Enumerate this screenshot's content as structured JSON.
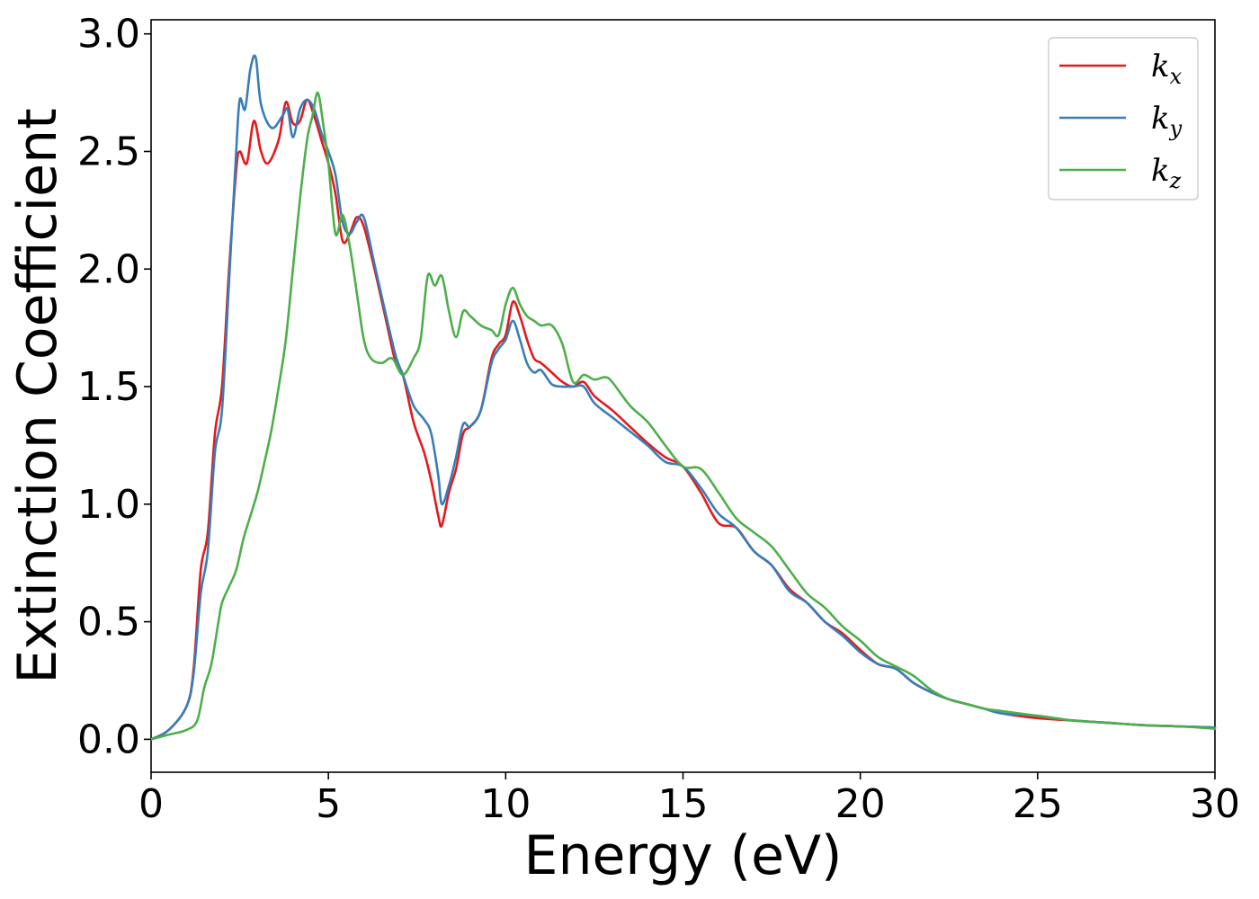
{
  "chart_data": {
    "type": "line",
    "title": "",
    "xlabel": "Energy (eV)",
    "ylabel": "Extinction Coefficient",
    "xlim": [
      0,
      30
    ],
    "ylim": [
      -0.14,
      3.06
    ],
    "xticks": [
      0,
      5,
      10,
      15,
      20,
      25,
      30
    ],
    "yticks": [
      0.0,
      0.5,
      1.0,
      1.5,
      2.0,
      2.5,
      3.0
    ],
    "xtick_labels": [
      "0",
      "5",
      "10",
      "15",
      "20",
      "25",
      "30"
    ],
    "ytick_labels": [
      "0.0",
      "0.5",
      "1.0",
      "1.5",
      "2.0",
      "2.5",
      "3.0"
    ],
    "grid": false,
    "legend_position": "top-right",
    "series": [
      {
        "name": "k",
        "subscript": "x",
        "color": "#e41a1c",
        "x": [
          0,
          0.5,
          1.0,
          1.2,
          1.4,
          1.6,
          1.8,
          2.0,
          2.2,
          2.4,
          2.5,
          2.7,
          2.9,
          3.1,
          3.3,
          3.6,
          3.8,
          4.0,
          4.2,
          4.4,
          4.6,
          4.8,
          5.0,
          5.2,
          5.4,
          5.6,
          5.8,
          6.0,
          6.3,
          6.6,
          6.9,
          7.1,
          7.4,
          7.7,
          7.9,
          8.1,
          8.2,
          8.4,
          8.6,
          8.8,
          9.0,
          9.3,
          9.6,
          9.8,
          10.0,
          10.2,
          10.4,
          10.6,
          10.8,
          11.0,
          11.3,
          11.6,
          11.9,
          12.2,
          12.5,
          13.0,
          13.5,
          14.0,
          14.5,
          15.0,
          15.5,
          16.0,
          16.5,
          17.0,
          17.5,
          18.0,
          18.5,
          19.0,
          19.5,
          20.0,
          20.5,
          21.0,
          21.5,
          22.0,
          22.5,
          23.0,
          23.5,
          24.0,
          25.0,
          26.0,
          27.0,
          28.0,
          29.0,
          30.0
        ],
        "values": [
          0.0,
          0.04,
          0.14,
          0.3,
          0.72,
          0.88,
          1.3,
          1.5,
          2.0,
          2.42,
          2.5,
          2.45,
          2.63,
          2.5,
          2.45,
          2.55,
          2.71,
          2.62,
          2.63,
          2.72,
          2.65,
          2.55,
          2.45,
          2.32,
          2.12,
          2.15,
          2.22,
          2.18,
          2.0,
          1.8,
          1.6,
          1.55,
          1.35,
          1.22,
          1.1,
          0.95,
          0.91,
          1.05,
          1.15,
          1.3,
          1.33,
          1.4,
          1.62,
          1.68,
          1.72,
          1.86,
          1.8,
          1.7,
          1.62,
          1.6,
          1.56,
          1.52,
          1.5,
          1.52,
          1.46,
          1.4,
          1.33,
          1.26,
          1.2,
          1.16,
          1.05,
          0.92,
          0.9,
          0.8,
          0.74,
          0.64,
          0.58,
          0.5,
          0.45,
          0.38,
          0.32,
          0.3,
          0.24,
          0.2,
          0.17,
          0.15,
          0.13,
          0.11,
          0.09,
          0.08,
          0.07,
          0.06,
          0.055,
          0.05
        ]
      },
      {
        "name": "k",
        "subscript": "y",
        "color": "#377eb8",
        "x": [
          0,
          0.5,
          1.0,
          1.2,
          1.4,
          1.6,
          1.8,
          2.0,
          2.2,
          2.4,
          2.5,
          2.65,
          2.8,
          2.95,
          3.1,
          3.4,
          3.7,
          3.85,
          4.0,
          4.2,
          4.4,
          4.6,
          4.8,
          5.0,
          5.2,
          5.4,
          5.6,
          5.8,
          6.0,
          6.3,
          6.6,
          6.9,
          7.1,
          7.4,
          7.7,
          7.9,
          8.1,
          8.2,
          8.4,
          8.6,
          8.8,
          9.0,
          9.3,
          9.6,
          9.8,
          10.0,
          10.2,
          10.4,
          10.6,
          10.8,
          11.0,
          11.3,
          11.6,
          11.9,
          12.2,
          12.5,
          13.0,
          13.5,
          14.0,
          14.5,
          15.0,
          15.5,
          16.0,
          16.5,
          17.0,
          17.5,
          18.0,
          18.5,
          19.0,
          19.5,
          20.0,
          20.5,
          21.0,
          21.5,
          22.0,
          22.5,
          23.0,
          23.5,
          24.0,
          25.0,
          26.0,
          27.0,
          28.0,
          29.0,
          30.0
        ],
        "values": [
          0.0,
          0.04,
          0.14,
          0.28,
          0.62,
          0.8,
          1.22,
          1.4,
          1.95,
          2.5,
          2.72,
          2.68,
          2.85,
          2.9,
          2.7,
          2.6,
          2.65,
          2.68,
          2.56,
          2.68,
          2.72,
          2.68,
          2.58,
          2.5,
          2.4,
          2.2,
          2.15,
          2.2,
          2.22,
          2.02,
          1.82,
          1.63,
          1.55,
          1.42,
          1.36,
          1.3,
          1.12,
          1.0,
          1.08,
          1.2,
          1.34,
          1.33,
          1.4,
          1.6,
          1.66,
          1.7,
          1.78,
          1.7,
          1.6,
          1.56,
          1.57,
          1.51,
          1.5,
          1.5,
          1.5,
          1.43,
          1.37,
          1.31,
          1.25,
          1.18,
          1.16,
          1.07,
          0.96,
          0.9,
          0.8,
          0.74,
          0.63,
          0.58,
          0.5,
          0.44,
          0.37,
          0.32,
          0.3,
          0.24,
          0.2,
          0.17,
          0.15,
          0.13,
          0.11,
          0.1,
          0.08,
          0.07,
          0.06,
          0.055,
          0.05
        ]
      },
      {
        "name": "k",
        "subscript": "z",
        "color": "#4daf4a",
        "x": [
          0,
          0.5,
          1.0,
          1.3,
          1.5,
          1.7,
          1.9,
          2.0,
          2.2,
          2.4,
          2.6,
          2.8,
          3.0,
          3.2,
          3.4,
          3.6,
          3.8,
          4.0,
          4.2,
          4.4,
          4.55,
          4.7,
          4.85,
          5.0,
          5.2,
          5.4,
          5.6,
          5.8,
          6.0,
          6.2,
          6.5,
          6.8,
          7.1,
          7.4,
          7.6,
          7.8,
          8.0,
          8.2,
          8.4,
          8.6,
          8.8,
          9.0,
          9.3,
          9.6,
          9.8,
          10.0,
          10.2,
          10.4,
          10.6,
          10.8,
          11.0,
          11.3,
          11.6,
          11.9,
          12.2,
          12.5,
          12.8,
          13.0,
          13.5,
          14.0,
          14.5,
          15.0,
          15.5,
          16.0,
          16.5,
          17.0,
          17.5,
          18.0,
          18.5,
          19.0,
          19.5,
          20.0,
          20.5,
          21.0,
          21.5,
          22.0,
          22.5,
          23.0,
          23.5,
          24.0,
          25.0,
          26.0,
          27.0,
          28.0,
          29.0,
          30.0
        ],
        "values": [
          0.0,
          0.02,
          0.04,
          0.08,
          0.22,
          0.32,
          0.5,
          0.58,
          0.65,
          0.72,
          0.85,
          0.95,
          1.05,
          1.18,
          1.32,
          1.5,
          1.7,
          2.0,
          2.3,
          2.55,
          2.65,
          2.75,
          2.62,
          2.45,
          2.15,
          2.23,
          2.1,
          1.9,
          1.7,
          1.62,
          1.6,
          1.62,
          1.55,
          1.62,
          1.7,
          1.97,
          1.93,
          1.97,
          1.82,
          1.71,
          1.82,
          1.8,
          1.76,
          1.74,
          1.72,
          1.85,
          1.92,
          1.85,
          1.8,
          1.78,
          1.76,
          1.76,
          1.68,
          1.52,
          1.55,
          1.53,
          1.54,
          1.52,
          1.42,
          1.35,
          1.25,
          1.16,
          1.15,
          1.05,
          0.94,
          0.88,
          0.82,
          0.72,
          0.62,
          0.56,
          0.48,
          0.42,
          0.35,
          0.31,
          0.27,
          0.21,
          0.17,
          0.15,
          0.13,
          0.12,
          0.1,
          0.08,
          0.07,
          0.06,
          0.055,
          0.045
        ]
      }
    ]
  }
}
